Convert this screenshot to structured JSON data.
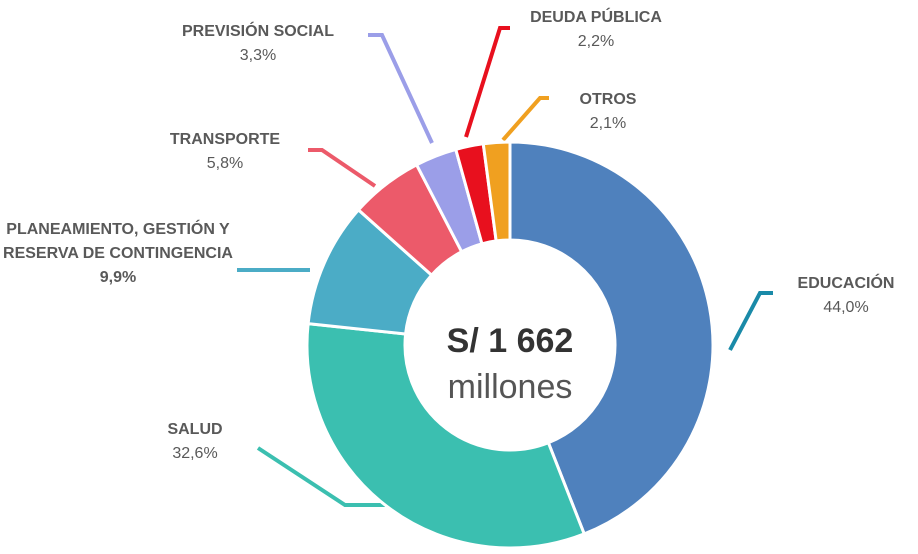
{
  "chart_data": {
    "type": "donut",
    "categories": [
      "EDUCACIÓN",
      "SALUD",
      "PLANEAMIENTO, GESTIÓN Y RESERVA DE CONTINGENCIA",
      "TRANSPORTE",
      "PREVISIÓN SOCIAL",
      "DEUDA PÚBLICA",
      "OTROS"
    ],
    "values": [
      44.0,
      32.6,
      9.9,
      5.8,
      3.3,
      2.2,
      2.1
    ],
    "value_labels": [
      "44,0%",
      "32,6%",
      "9,9%",
      "5,8%",
      "3,3%",
      "2,2%",
      "2,1%"
    ],
    "colors": [
      "#4f81bd",
      "#3bbfb0",
      "#4bacc6",
      "#ec5a6a",
      "#9b9ee8",
      "#e8101e",
      "#f0a020"
    ],
    "center_label": [
      "S/ 1 662",
      "millones"
    ]
  }
}
